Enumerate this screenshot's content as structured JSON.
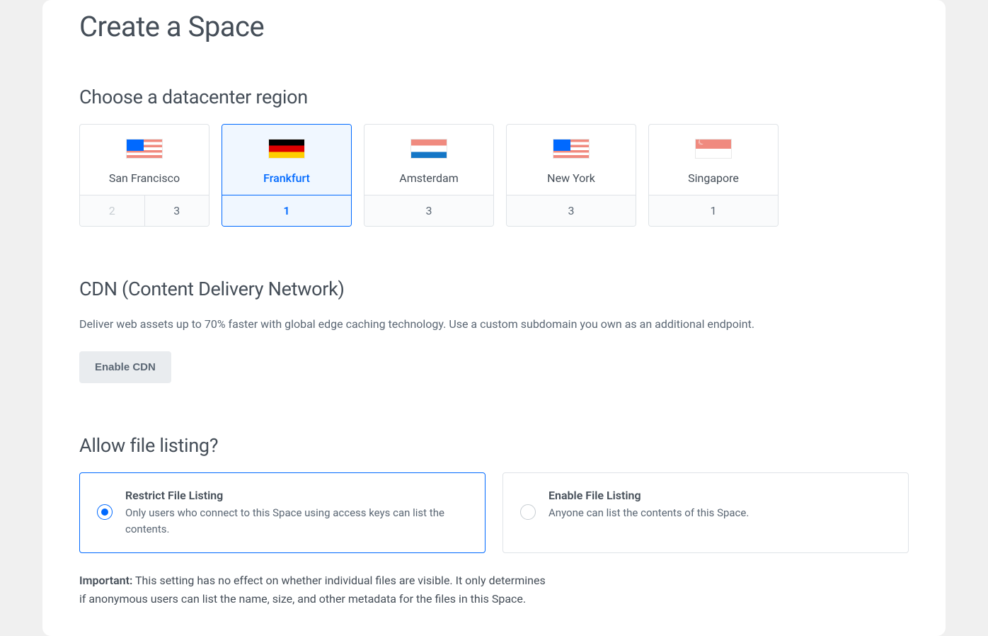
{
  "page": {
    "title": "Create a Space"
  },
  "region_section": {
    "title": "Choose a datacenter region",
    "cards": [
      {
        "name": "San Francisco",
        "flag": "us",
        "numbers": [
          "2",
          "3"
        ],
        "disabled_idx": 0,
        "selected": false
      },
      {
        "name": "Frankfurt",
        "flag": "de",
        "numbers": [
          "1"
        ],
        "disabled_idx": -1,
        "selected": true
      },
      {
        "name": "Amsterdam",
        "flag": "nl",
        "numbers": [
          "3"
        ],
        "disabled_idx": -1,
        "selected": false
      },
      {
        "name": "New York",
        "flag": "us",
        "numbers": [
          "3"
        ],
        "disabled_idx": -1,
        "selected": false
      },
      {
        "name": "Singapore",
        "flag": "sg",
        "numbers": [
          "1"
        ],
        "disabled_idx": -1,
        "selected": false
      }
    ]
  },
  "cdn_section": {
    "title": "CDN (Content Delivery Network)",
    "description": "Deliver web assets up to 70% faster with global edge caching technology. Use a custom subdomain you own as an additional endpoint.",
    "button_label": "Enable CDN"
  },
  "listing_section": {
    "title": "Allow file listing?",
    "options": [
      {
        "title": "Restrict File Listing",
        "description": "Only users who connect to this Space using access keys can list the contents.",
        "selected": true
      },
      {
        "title": "Enable File Listing",
        "description": "Anyone can list the contents of this Space.",
        "selected": false
      }
    ],
    "note_label": "Important:",
    "note_text": " This setting has no effect on whether individual files are visible. It only determines if anonymous users can list the name, size, and other metadata for the files in this Space."
  },
  "colors": {
    "accent": "#0069ff",
    "text_primary": "#454e58",
    "text_secondary": "#5b6774",
    "border": "#dfe3e7",
    "selected_bg": "#f0f7ff",
    "button_bg": "#e9ecef",
    "disabled_text": "#c7cdd2",
    "page_bg": "#ffffff"
  }
}
